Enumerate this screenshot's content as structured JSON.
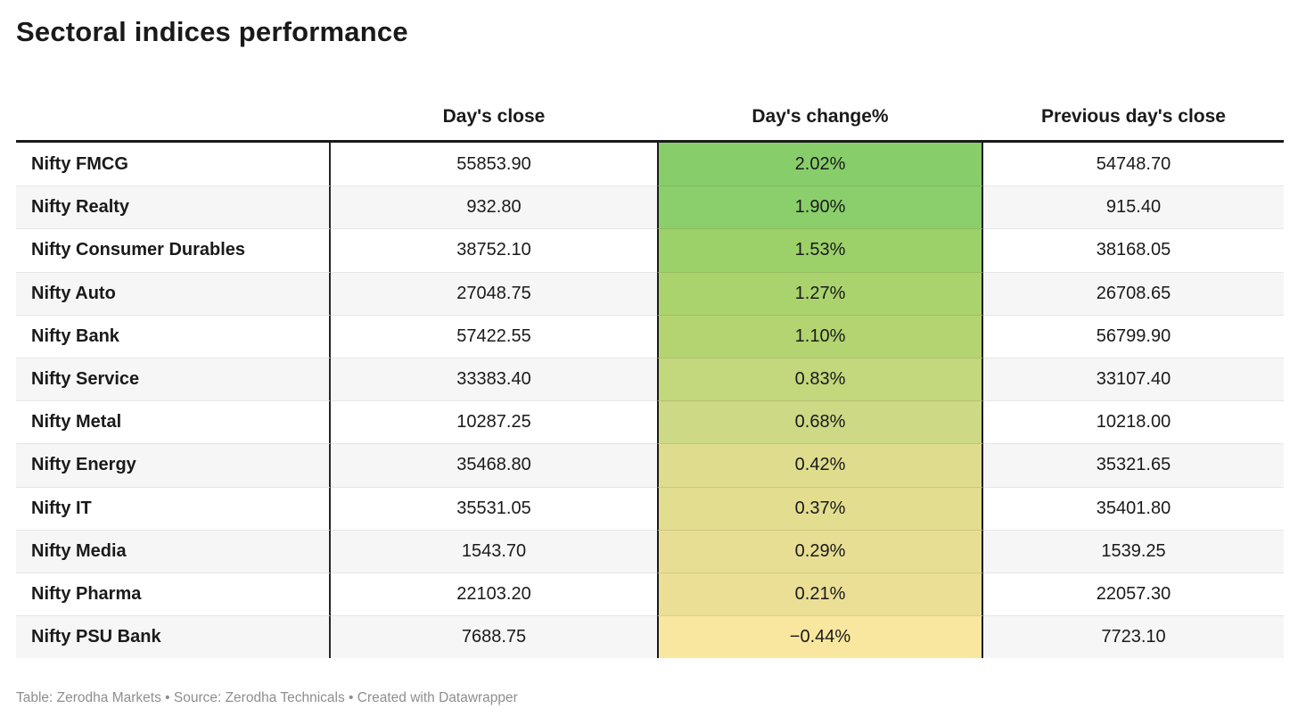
{
  "title": "Sectoral indices performance",
  "footer": "Table: Zerodha Markets • Source: Zerodha Technicals • Created with Datawrapper",
  "chart_data": {
    "type": "table",
    "title": "Sectoral indices performance",
    "columns": [
      "",
      "Day's close",
      "Day's change%",
      "Previous day's close"
    ],
    "color_scale": {
      "description": "green (high positive change) to pale yellow (negative change)",
      "max_color": "#87ce6b",
      "min_color": "#f9e79f"
    },
    "rows": [
      {
        "name": "Nifty FMCG",
        "close": "55853.90",
        "change": "2.02%",
        "change_value": 2.02,
        "prev": "54748.70",
        "color": "#87ce6b"
      },
      {
        "name": "Nifty Realty",
        "close": "932.80",
        "change": "1.90%",
        "change_value": 1.9,
        "prev": "915.40",
        "color": "#8acf6c"
      },
      {
        "name": "Nifty Consumer Durables",
        "close": "38752.10",
        "change": "1.53%",
        "change_value": 1.53,
        "prev": "38168.05",
        "color": "#9cd169"
      },
      {
        "name": "Nifty Auto",
        "close": "27048.75",
        "change": "1.27%",
        "change_value": 1.27,
        "prev": "26708.65",
        "color": "#aad36e"
      },
      {
        "name": "Nifty Bank",
        "close": "57422.55",
        "change": "1.10%",
        "change_value": 1.1,
        "prev": "56799.90",
        "color": "#b3d471"
      },
      {
        "name": "Nifty Service",
        "close": "33383.40",
        "change": "0.83%",
        "change_value": 0.83,
        "prev": "33107.40",
        "color": "#c3d77c"
      },
      {
        "name": "Nifty Metal",
        "close": "10287.25",
        "change": "0.68%",
        "change_value": 0.68,
        "prev": "10218.00",
        "color": "#cdd984"
      },
      {
        "name": "Nifty Energy",
        "close": "35468.80",
        "change": "0.42%",
        "change_value": 0.42,
        "prev": "35321.65",
        "color": "#dfdc8d"
      },
      {
        "name": "Nifty IT",
        "close": "35531.05",
        "change": "0.37%",
        "change_value": 0.37,
        "prev": "35401.80",
        "color": "#e3dd90"
      },
      {
        "name": "Nifty Media",
        "close": "1543.70",
        "change": "0.29%",
        "change_value": 0.29,
        "prev": "1539.25",
        "color": "#e7de93"
      },
      {
        "name": "Nifty Pharma",
        "close": "22103.20",
        "change": "0.21%",
        "change_value": 0.21,
        "prev": "22057.30",
        "color": "#eadf95"
      },
      {
        "name": "Nifty PSU Bank",
        "close": "7688.75",
        "change": "−0.44%",
        "change_value": -0.44,
        "prev": "7723.10",
        "color": "#f9e79f"
      }
    ],
    "notes": "Table: Zerodha Markets • Source: Zerodha Technicals • Created with Datawrapper"
  }
}
